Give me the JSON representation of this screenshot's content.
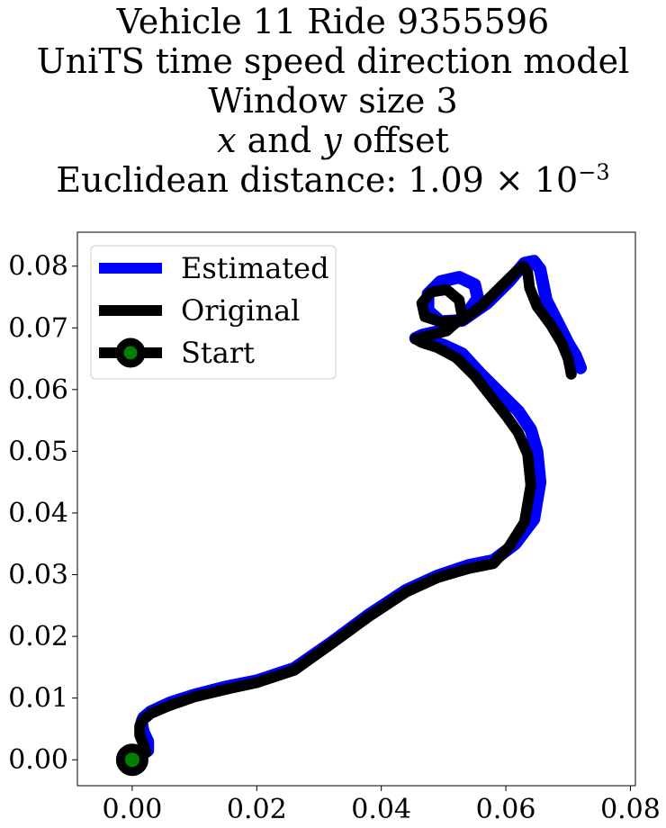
{
  "title_lines": [
    "Vehicle 11 Ride 9355596",
    "UniTS time speed direction model",
    "Window size 3",
    "x and y offset",
    "Euclidean distance: 1.09 × 10^-3"
  ],
  "title_parts": {
    "x_var": "x",
    "and": " and ",
    "y_var": "y",
    "offset": " offset",
    "dist_prefix": "Euclidean distance: ",
    "dist_mantissa": "1.09 × 10",
    "dist_exponent": "−3"
  },
  "chart_data": {
    "type": "line",
    "xlim": [
      -0.0088,
      0.0808
    ],
    "ylim": [
      -0.0042,
      0.0855
    ],
    "xticks": [
      "0.00",
      "0.02",
      "0.04",
      "0.06",
      "0.08"
    ],
    "xtick_values": [
      0.0,
      0.02,
      0.04,
      0.06,
      0.08
    ],
    "yticks": [
      "0.00",
      "0.01",
      "0.02",
      "0.03",
      "0.04",
      "0.05",
      "0.06",
      "0.07",
      "0.08"
    ],
    "ytick_values": [
      0.0,
      0.01,
      0.02,
      0.03,
      0.04,
      0.05,
      0.06,
      0.07,
      0.08
    ],
    "grid": false,
    "legend_position": "upper-left",
    "series": [
      {
        "name": "Estimated",
        "color": "#0000ff",
        "x": [
          0.0,
          0.0015,
          0.0025,
          0.0025,
          0.0018,
          0.0015,
          0.0018,
          0.003,
          0.006,
          0.01,
          0.015,
          0.02,
          0.026,
          0.032,
          0.038,
          0.044,
          0.049,
          0.054,
          0.058,
          0.0615,
          0.0645,
          0.0655,
          0.065,
          0.064,
          0.062,
          0.059,
          0.056,
          0.053,
          0.05,
          0.0475,
          0.0455,
          0.0465,
          0.05,
          0.0535,
          0.0555,
          0.055,
          0.0525,
          0.0495,
          0.0475,
          0.0475,
          0.0495,
          0.053,
          0.057,
          0.0605,
          0.063,
          0.0645,
          0.0655,
          0.0665,
          0.0685,
          0.07,
          0.0712,
          0.072
        ],
        "y": [
          0.0,
          0.0008,
          0.0015,
          0.003,
          0.0045,
          0.006,
          0.0068,
          0.0078,
          0.0092,
          0.0105,
          0.0118,
          0.0128,
          0.0148,
          0.019,
          0.0235,
          0.0275,
          0.0298,
          0.0315,
          0.0323,
          0.035,
          0.039,
          0.045,
          0.05,
          0.0535,
          0.0565,
          0.0595,
          0.0625,
          0.0658,
          0.0672,
          0.068,
          0.0683,
          0.0688,
          0.0696,
          0.072,
          0.0748,
          0.077,
          0.0782,
          0.0775,
          0.0755,
          0.0728,
          0.071,
          0.0712,
          0.074,
          0.0775,
          0.0805,
          0.0808,
          0.0795,
          0.0745,
          0.0705,
          0.0675,
          0.0655,
          0.0635
        ]
      },
      {
        "name": "Original",
        "color": "#000000",
        "x": [
          0.0,
          0.0015,
          0.0022,
          0.0018,
          0.0012,
          0.0012,
          0.0018,
          0.003,
          0.006,
          0.01,
          0.015,
          0.02,
          0.026,
          0.032,
          0.038,
          0.044,
          0.049,
          0.054,
          0.058,
          0.0605,
          0.063,
          0.064,
          0.0635,
          0.062,
          0.06,
          0.0575,
          0.055,
          0.052,
          0.049,
          0.0465,
          0.0455,
          0.047,
          0.0505,
          0.053,
          0.0525,
          0.0505,
          0.048,
          0.0465,
          0.047,
          0.0495,
          0.053,
          0.056,
          0.059,
          0.0615,
          0.0628,
          0.0635,
          0.0638,
          0.065,
          0.0672,
          0.069,
          0.07,
          0.0705
        ],
        "y": [
          0.0,
          0.0005,
          0.0012,
          0.0025,
          0.004,
          0.0055,
          0.0065,
          0.0075,
          0.0088,
          0.0102,
          0.0114,
          0.0125,
          0.0145,
          0.0188,
          0.0232,
          0.0272,
          0.0295,
          0.031,
          0.0318,
          0.0345,
          0.0385,
          0.0445,
          0.0495,
          0.053,
          0.0558,
          0.059,
          0.0622,
          0.0652,
          0.0668,
          0.0676,
          0.0682,
          0.0686,
          0.0695,
          0.0718,
          0.0745,
          0.0762,
          0.0758,
          0.074,
          0.0718,
          0.071,
          0.0712,
          0.0735,
          0.0765,
          0.079,
          0.08,
          0.079,
          0.0765,
          0.0735,
          0.0705,
          0.0675,
          0.065,
          0.0625
        ]
      }
    ],
    "start_marker": {
      "name": "Start",
      "x": 0.0,
      "y": 0.0,
      "edge_color": "#000000",
      "face_color": "#008000"
    }
  }
}
